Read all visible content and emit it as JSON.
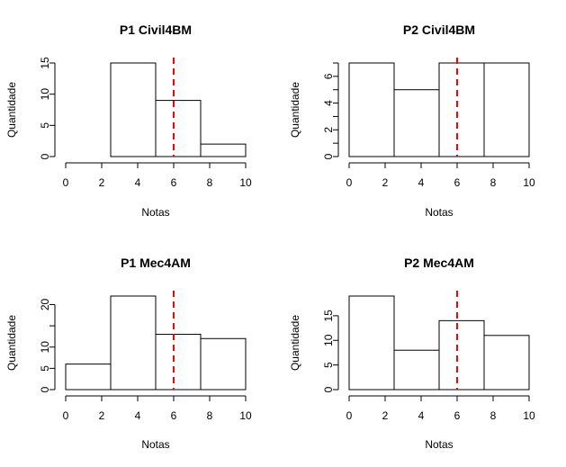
{
  "chart_data": [
    {
      "type": "bar",
      "title": "P1 Civil4BM",
      "xlabel": "Notas",
      "ylabel": "Quantidade",
      "bins": [
        [
          0,
          2.5
        ],
        [
          2.5,
          5
        ],
        [
          5,
          7.5
        ],
        [
          7.5,
          10
        ]
      ],
      "values": [
        0,
        15,
        9,
        2
      ],
      "xlim": [
        0,
        10
      ],
      "ylim": [
        0,
        15
      ],
      "xticks": [
        0,
        2,
        4,
        6,
        8,
        10
      ],
      "yticks": [
        0,
        5,
        10,
        15
      ],
      "vline": 6,
      "vline_color": "#ff0000"
    },
    {
      "type": "bar",
      "title": "P2 Civil4BM",
      "xlabel": "Notas",
      "ylabel": "Quantidade",
      "bins": [
        [
          0,
          2.5
        ],
        [
          2.5,
          5
        ],
        [
          5,
          7.5
        ],
        [
          7.5,
          10
        ]
      ],
      "values": [
        7,
        5,
        7,
        7
      ],
      "xlim": [
        0,
        10
      ],
      "ylim": [
        0,
        7
      ],
      "xticks": [
        0,
        2,
        4,
        6,
        8,
        10
      ],
      "yticks": [
        0,
        1,
        2,
        3,
        4,
        5,
        6,
        7
      ],
      "ytick_labels": [
        "0",
        "",
        "2",
        "",
        "4",
        "",
        "6",
        ""
      ],
      "vline": 6,
      "vline_color": "#ff0000"
    },
    {
      "type": "bar",
      "title": "P1 Mec4AM",
      "xlabel": "Notas",
      "ylabel": "Quantidade",
      "bins": [
        [
          0,
          2.5
        ],
        [
          2.5,
          5
        ],
        [
          5,
          7.5
        ],
        [
          7.5,
          10
        ]
      ],
      "values": [
        6,
        22,
        13,
        12
      ],
      "xlim": [
        0,
        10
      ],
      "ylim": [
        0,
        22
      ],
      "xticks": [
        0,
        2,
        4,
        6,
        8,
        10
      ],
      "yticks": [
        0,
        5,
        10,
        15,
        20
      ],
      "ytick_labels": [
        "0",
        "5",
        "10",
        "",
        "20"
      ],
      "vline": 6,
      "vline_color": "#ff0000"
    },
    {
      "type": "bar",
      "title": "P2 Mec4AM",
      "xlabel": "Notas",
      "ylabel": "Quantidade",
      "bins": [
        [
          0,
          2.5
        ],
        [
          2.5,
          5
        ],
        [
          5,
          7.5
        ],
        [
          7.5,
          10
        ]
      ],
      "values": [
        19,
        8,
        14,
        11
      ],
      "xlim": [
        0,
        10
      ],
      "ylim": [
        0,
        19
      ],
      "xticks": [
        0,
        2,
        4,
        6,
        8,
        10
      ],
      "yticks": [
        0,
        5,
        10,
        15
      ],
      "vline": 6,
      "vline_color": "#ff0000"
    }
  ]
}
